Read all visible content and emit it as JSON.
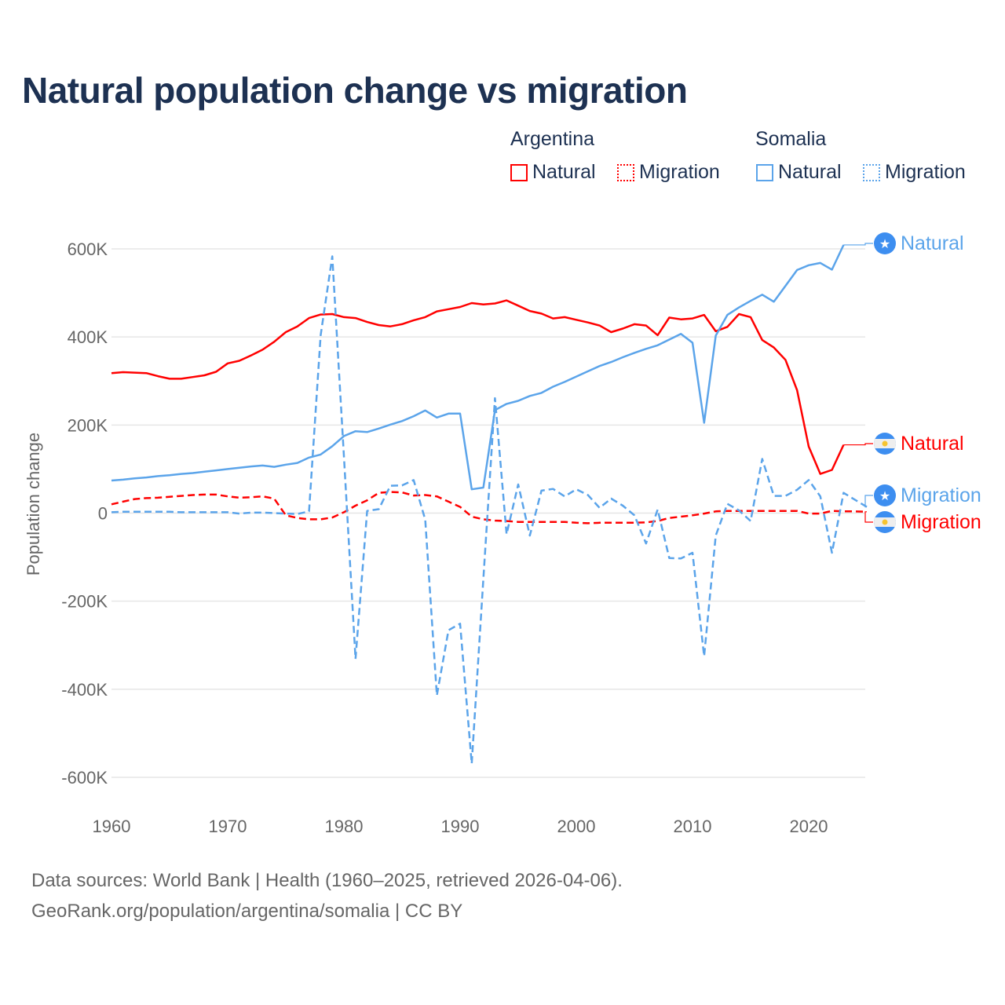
{
  "chart_data": {
    "type": "line",
    "title": "Natural population change vs migration",
    "ylabel": "Population change",
    "xlabel": "",
    "ylim": [
      -600000,
      600000
    ],
    "xlim": [
      1960,
      2025
    ],
    "grid": true,
    "y_ticks": [
      600000,
      400000,
      200000,
      0,
      -200000,
      -400000,
      -600000
    ],
    "y_tick_labels": [
      "600K",
      "400K",
      "200K",
      "0",
      "-200K",
      "-400K",
      "-600K"
    ],
    "x_ticks": [
      1960,
      1970,
      1980,
      1990,
      2000,
      2010,
      2020
    ],
    "x_tick_labels": [
      "1960",
      "1970",
      "1980",
      "1990",
      "2000",
      "2010",
      "2020"
    ],
    "legend": {
      "placement": "top-right",
      "groups": [
        {
          "name": "Argentina",
          "items": [
            "Natural",
            "Migration"
          ]
        },
        {
          "name": "Somalia",
          "items": [
            "Natural",
            "Migration"
          ]
        }
      ]
    },
    "series": [
      {
        "name": "Argentina Natural",
        "country": "Argentina",
        "kind": "Natural",
        "end_label": "Natural",
        "color": "#ff0000",
        "dash": false,
        "start_year": 1960,
        "values": [
          318000,
          320000,
          319000,
          318000,
          311000,
          305000,
          305000,
          309000,
          313000,
          321000,
          340000,
          346000,
          358000,
          371000,
          389000,
          411000,
          424000,
          443000,
          451000,
          452000,
          445000,
          443000,
          434000,
          427000,
          424000,
          429000,
          438000,
          445000,
          458000,
          463000,
          468000,
          477000,
          474000,
          476000,
          483000,
          471000,
          459000,
          453000,
          442000,
          445000,
          439000,
          433000,
          426000,
          411000,
          419000,
          429000,
          426000,
          404000,
          444000,
          440000,
          442000,
          450000,
          413000,
          423000,
          452000,
          445000,
          393000,
          376000,
          348000,
          279000,
          151000,
          89000,
          98000,
          155000
        ]
      },
      {
        "name": "Argentina Migration",
        "country": "Argentina",
        "kind": "Migration",
        "end_label": "Migration",
        "color": "#ff0000",
        "dash": true,
        "start_year": 1960,
        "values": [
          20000,
          26000,
          32000,
          34000,
          35000,
          37000,
          39000,
          41000,
          42000,
          42000,
          38000,
          35000,
          36000,
          38000,
          33000,
          -5000,
          -11000,
          -14000,
          -14000,
          -10000,
          2000,
          17000,
          29000,
          46000,
          48000,
          47000,
          40000,
          41000,
          38000,
          26000,
          14000,
          -8000,
          -14000,
          -17000,
          -18000,
          -20000,
          -20000,
          -20000,
          -20000,
          -20000,
          -22000,
          -23000,
          -22000,
          -22000,
          -22000,
          -22000,
          -21000,
          -18000,
          -11000,
          -8000,
          -5000,
          -1000,
          4000,
          5000,
          5000,
          5000,
          5000,
          5000,
          5000,
          5000,
          -1000,
          -1000,
          5000,
          4000,
          4000,
          3000
        ]
      },
      {
        "name": "Somalia Natural",
        "country": "Somalia",
        "kind": "Natural",
        "end_label": "Natural",
        "color": "#5ba4ea",
        "dash": false,
        "start_year": 1960,
        "values": [
          74000,
          76000,
          79000,
          81000,
          84000,
          86000,
          89000,
          91000,
          94000,
          97000,
          100000,
          103000,
          106000,
          108000,
          105000,
          110000,
          114000,
          126000,
          133000,
          152000,
          175000,
          186000,
          184000,
          192000,
          201000,
          209000,
          220000,
          233000,
          217000,
          226000,
          226000,
          54000,
          58000,
          234000,
          248000,
          255000,
          266000,
          273000,
          287000,
          298000,
          310000,
          322000,
          334000,
          343000,
          354000,
          364000,
          373000,
          381000,
          394000,
          407000,
          387000,
          205000,
          403000,
          450000,
          467000,
          482000,
          496000,
          480000,
          516000,
          552000,
          563000,
          568000,
          553000,
          609000
        ]
      },
      {
        "name": "Somalia Migration",
        "country": "Somalia",
        "kind": "Migration",
        "end_label": "Migration",
        "color": "#5ba4ea",
        "dash": true,
        "start_year": 1960,
        "values": [
          2000,
          3000,
          3000,
          3000,
          3000,
          3000,
          2000,
          2000,
          2000,
          2000,
          2000,
          -1000,
          1000,
          1000,
          0,
          -1000,
          -2000,
          4000,
          404000,
          583000,
          130000,
          -331000,
          5000,
          9000,
          62000,
          63000,
          75000,
          -15000,
          -414000,
          -266000,
          -251000,
          -569000,
          -150000,
          261000,
          -48000,
          65000,
          -51000,
          51000,
          55000,
          38000,
          54000,
          41000,
          12000,
          33000,
          17000,
          -5000,
          -69000,
          8000,
          -102000,
          -103000,
          -90000,
          -325000,
          -51000,
          21000,
          6000,
          -18000,
          123000,
          39000,
          39000,
          53000,
          75000,
          38000,
          -90000,
          46000,
          30000,
          14000
        ]
      }
    ]
  },
  "legend_labels": {
    "argentina": "Argentina",
    "somalia": "Somalia",
    "natural": "Natural",
    "migration": "Migration"
  },
  "colors": {
    "argentina": "#ff0000",
    "somalia": "#5ba4ea",
    "title": "#1d3152"
  },
  "icons": {
    "argentina": "argentina-flag-icon",
    "somalia": "somalia-flag-icon"
  },
  "footer": {
    "sources": "Data sources: World Bank | Health (1960–2025, retrieved 2026-04-06).",
    "credit": "GeoRank.org/population/argentina/somalia | CC BY"
  }
}
